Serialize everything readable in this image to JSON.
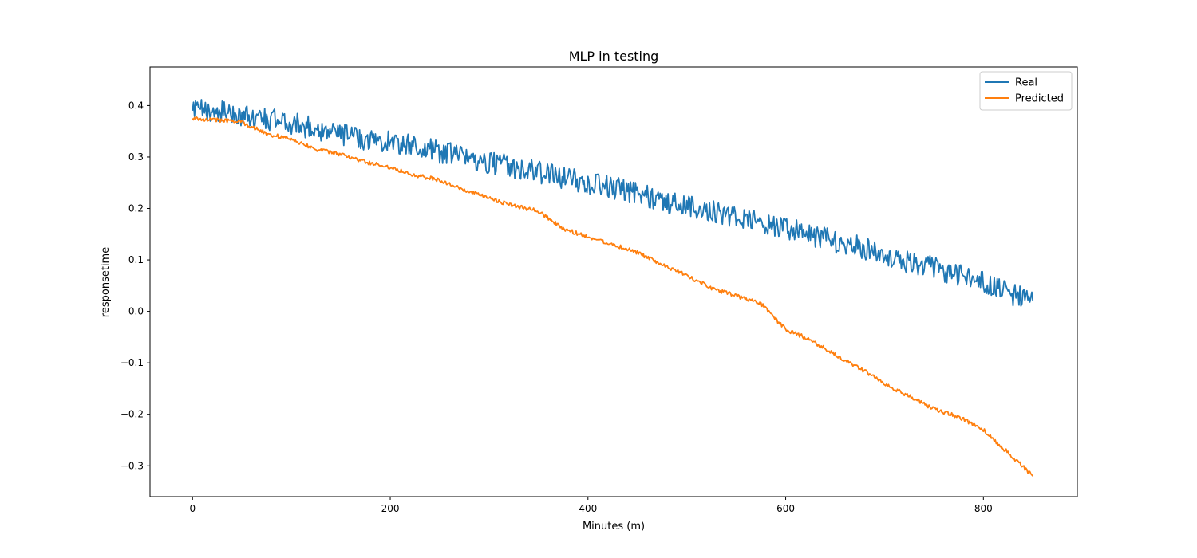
{
  "chart_data": {
    "type": "line",
    "title": "MLP in testing",
    "xlabel": "Minutes (m)",
    "ylabel": "responsetime",
    "xlim": [
      -43,
      895
    ],
    "ylim": [
      -0.36,
      0.475
    ],
    "xticks": [
      0,
      200,
      400,
      600,
      800
    ],
    "xtick_labels": [
      "0",
      "200",
      "400",
      "600",
      "800"
    ],
    "yticks": [
      -0.3,
      -0.2,
      -0.1,
      0.0,
      0.1,
      0.2,
      0.3,
      0.4
    ],
    "ytick_labels": [
      "−0.3",
      "−0.2",
      "−0.1",
      "0.0",
      "0.1",
      "0.2",
      "0.3",
      "0.4"
    ],
    "grid": false,
    "legend_position": "top-right",
    "series": [
      {
        "name": "Real",
        "color": "#1f77b4",
        "x": [
          0,
          25,
          50,
          75,
          100,
          125,
          150,
          175,
          200,
          225,
          250,
          275,
          300,
          325,
          350,
          375,
          400,
          425,
          450,
          475,
          500,
          525,
          550,
          575,
          600,
          625,
          650,
          675,
          700,
          725,
          750,
          775,
          800,
          825,
          850
        ],
        "y": [
          0.39,
          0.39,
          0.38,
          0.375,
          0.365,
          0.355,
          0.345,
          0.335,
          0.33,
          0.32,
          0.31,
          0.3,
          0.29,
          0.28,
          0.27,
          0.26,
          0.25,
          0.24,
          0.23,
          0.215,
          0.205,
          0.195,
          0.185,
          0.17,
          0.16,
          0.15,
          0.135,
          0.125,
          0.11,
          0.095,
          0.085,
          0.07,
          0.055,
          0.035,
          0.02
        ],
        "noise": 0.022
      },
      {
        "name": "Predicted",
        "color": "#ff7f0e",
        "x": [
          0,
          25,
          50,
          75,
          100,
          125,
          150,
          175,
          200,
          225,
          250,
          275,
          300,
          325,
          350,
          375,
          400,
          425,
          450,
          475,
          500,
          525,
          550,
          575,
          600,
          625,
          650,
          675,
          700,
          725,
          750,
          775,
          800,
          825,
          850
        ],
        "y": [
          0.375,
          0.372,
          0.368,
          0.345,
          0.335,
          0.315,
          0.305,
          0.29,
          0.28,
          0.265,
          0.255,
          0.235,
          0.22,
          0.205,
          0.195,
          0.16,
          0.145,
          0.13,
          0.115,
          0.09,
          0.07,
          0.045,
          0.03,
          0.015,
          -0.035,
          -0.055,
          -0.085,
          -0.11,
          -0.14,
          -0.165,
          -0.19,
          -0.205,
          -0.23,
          -0.275,
          -0.32
        ],
        "noise": 0.004
      }
    ]
  }
}
